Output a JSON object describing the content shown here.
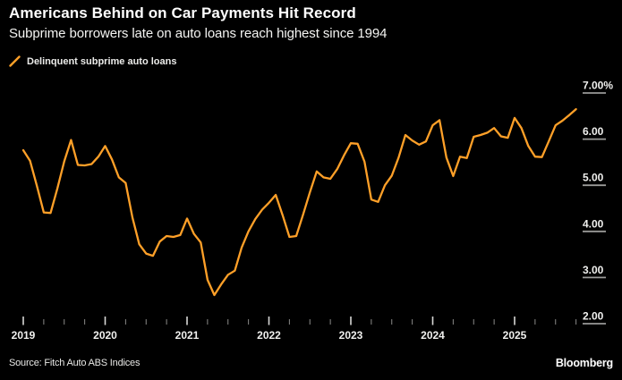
{
  "header": {
    "title": "Americans Behind on Car Payments Hit Record",
    "subtitle": "Subprime borrowers late on auto loans reach highest since 1994"
  },
  "legend": {
    "label": "Delinquent subprime auto loans",
    "swatch": "orange-line-slash-icon"
  },
  "footer": {
    "source": "Source: Fitch Auto ABS Indices",
    "brand": "Bloomberg"
  },
  "colors": {
    "background": "#000000",
    "line": "#FFA028",
    "axis_text": "#f0f0ee",
    "major_tick": "#d8d8d6",
    "minor_tick": "#8a8a88",
    "y_dash": "#9a9a98"
  },
  "chart_data": {
    "type": "line",
    "title": "Americans Behind on Car Payments Hit Record",
    "subtitle": "Subprime borrowers late on auto loans reach highest since 1994",
    "unit": "%",
    "grid": false,
    "legend_position": "top-left",
    "y_axis_side": "right",
    "ylim": [
      1.95,
      7.0
    ],
    "y_ticks": [
      7,
      6,
      5,
      4,
      3,
      2
    ],
    "y_tick_labels": [
      "7.00%",
      "6.00",
      "5.00",
      "4.00",
      "3.00",
      "2.00"
    ],
    "x_tick_labels": [
      "2019",
      "2020",
      "2021",
      "2022",
      "2023",
      "2024",
      "2025"
    ],
    "x_minor_ticks_per_year": 4,
    "series": [
      {
        "name": "Delinquent subprime auto loans",
        "color": "#FFA028",
        "frequency": "monthly",
        "start_month": "2019-01",
        "end_month": "2025-10",
        "values": [
          5.76,
          5.53,
          4.98,
          4.41,
          4.4,
          4.93,
          5.52,
          5.98,
          5.44,
          5.43,
          5.46,
          5.62,
          5.85,
          5.56,
          5.17,
          5.05,
          4.3,
          3.72,
          3.52,
          3.47,
          3.78,
          3.9,
          3.88,
          3.92,
          4.28,
          3.95,
          3.76,
          2.95,
          2.62,
          2.85,
          3.06,
          3.15,
          3.65,
          4.0,
          4.27,
          4.47,
          4.62,
          4.79,
          4.35,
          3.88,
          3.9,
          4.36,
          4.85,
          5.3,
          5.17,
          5.14,
          5.35,
          5.65,
          5.91,
          5.9,
          5.51,
          4.69,
          4.64,
          5.0,
          5.21,
          5.6,
          6.09,
          5.97,
          5.88,
          5.95,
          6.3,
          6.41,
          5.6,
          5.2,
          5.62,
          5.59,
          6.05,
          6.09,
          6.14,
          6.24,
          6.06,
          6.03,
          6.46,
          6.24,
          5.85,
          5.62,
          5.61,
          5.95,
          6.3,
          6.4,
          6.52,
          6.65
        ]
      }
    ]
  }
}
